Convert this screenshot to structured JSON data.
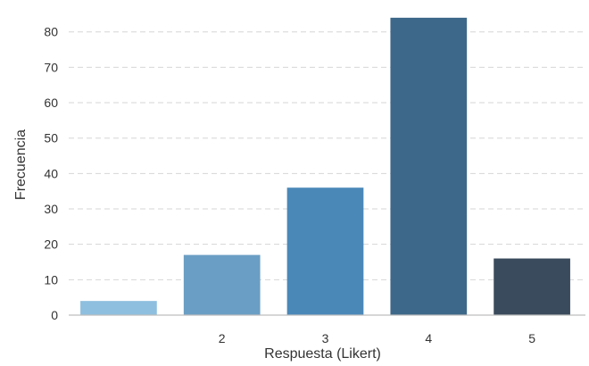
{
  "chart_data": {
    "type": "bar",
    "categories": [
      "",
      "2",
      "3",
      "4",
      "5"
    ],
    "values": [
      4,
      17,
      36,
      84,
      16
    ],
    "colors": [
      "#8ebfdf",
      "#6b9ec4",
      "#4a88b8",
      "#3d6889",
      "#3a4b5d"
    ],
    "xlabel": "Respuesta (Likert)",
    "ylabel": "Frecuencia",
    "yticks": [
      0,
      10,
      20,
      30,
      40,
      50,
      60,
      70,
      80
    ],
    "ylim": [
      0,
      88
    ],
    "grid": "horizontal-dashed"
  }
}
